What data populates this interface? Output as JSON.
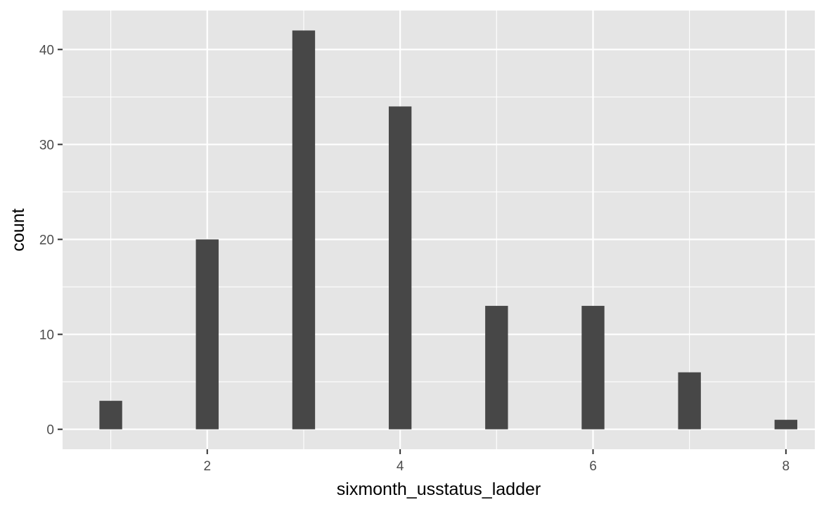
{
  "chart_data": {
    "type": "bar",
    "title": "",
    "xlabel": "sixmonth_usstatus_ladder",
    "ylabel": "count",
    "x": [
      1,
      2,
      3,
      4,
      5,
      6,
      7,
      8
    ],
    "values": [
      3,
      20,
      42,
      34,
      13,
      13,
      6,
      1
    ],
    "xlim": [
      0.5,
      8.3
    ],
    "ylim": [
      -2.1,
      44.1
    ],
    "xticks": [
      2,
      4,
      6,
      8
    ],
    "xtick_labels": [
      "2",
      "4",
      "6",
      "8"
    ],
    "yticks": [
      0,
      10,
      20,
      30,
      40
    ],
    "ytick_labels": [
      "0",
      "10",
      "20",
      "30",
      "40"
    ],
    "grid": true,
    "colors": {
      "panel": "#e5e5e5",
      "grid_major": "#ffffff",
      "bar": "#474747",
      "tick": "#333333"
    }
  }
}
